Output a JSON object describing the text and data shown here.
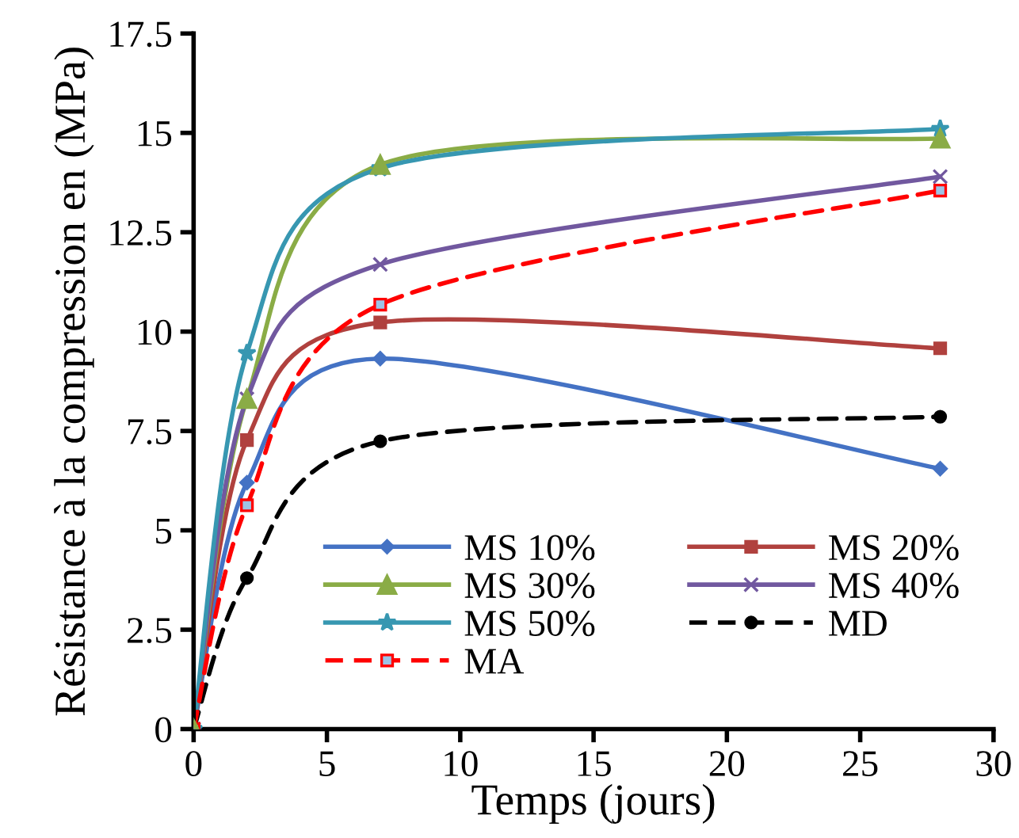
{
  "chart_data": {
    "type": "line",
    "xlabel": "Temps (jours)",
    "ylabel": "Résistance à la compression en (MPa)",
    "x": [
      0,
      2,
      7,
      28
    ],
    "xlim": [
      0,
      30
    ],
    "xticks": [
      0,
      5,
      10,
      15,
      20,
      25,
      30
    ],
    "ylim": [
      0,
      17.5
    ],
    "yticks": [
      0,
      2.5,
      5,
      7.5,
      10,
      12.5,
      15,
      17.5
    ],
    "grid": false,
    "legend": "bottom right",
    "series": [
      {
        "name": "MS 10%",
        "color": "#4472c4",
        "marker": "diamond",
        "line_style": "solid",
        "values": [
          0,
          6.2,
          9.32,
          6.55
        ]
      },
      {
        "name": "MS 20%",
        "color": "#b0413e",
        "marker": "square",
        "line_style": "solid",
        "values": [
          0,
          7.27,
          10.23,
          9.58
        ]
      },
      {
        "name": "MS 30%",
        "color": "#8aac46",
        "marker": "triangle",
        "line_style": "solid",
        "values": [
          0,
          8.31,
          14.2,
          14.86
        ]
      },
      {
        "name": "MS 40%",
        "color": "#71589f",
        "marker": "cross",
        "line_style": "solid",
        "values": [
          0,
          8.31,
          11.69,
          13.9
        ]
      },
      {
        "name": "MS 50%",
        "color": "#3797b1",
        "marker": "star",
        "line_style": "solid",
        "values": [
          0,
          9.46,
          14.11,
          15.1
        ]
      },
      {
        "name": "MD",
        "color": "#000000",
        "marker": "circle",
        "line_style": "dashed",
        "values": [
          0,
          3.8,
          7.24,
          7.86
        ]
      },
      {
        "name": "MA",
        "color": "#ff0000",
        "marker": "square",
        "line_style": "dashed",
        "values": [
          0,
          5.63,
          10.68,
          13.55
        ]
      }
    ]
  }
}
